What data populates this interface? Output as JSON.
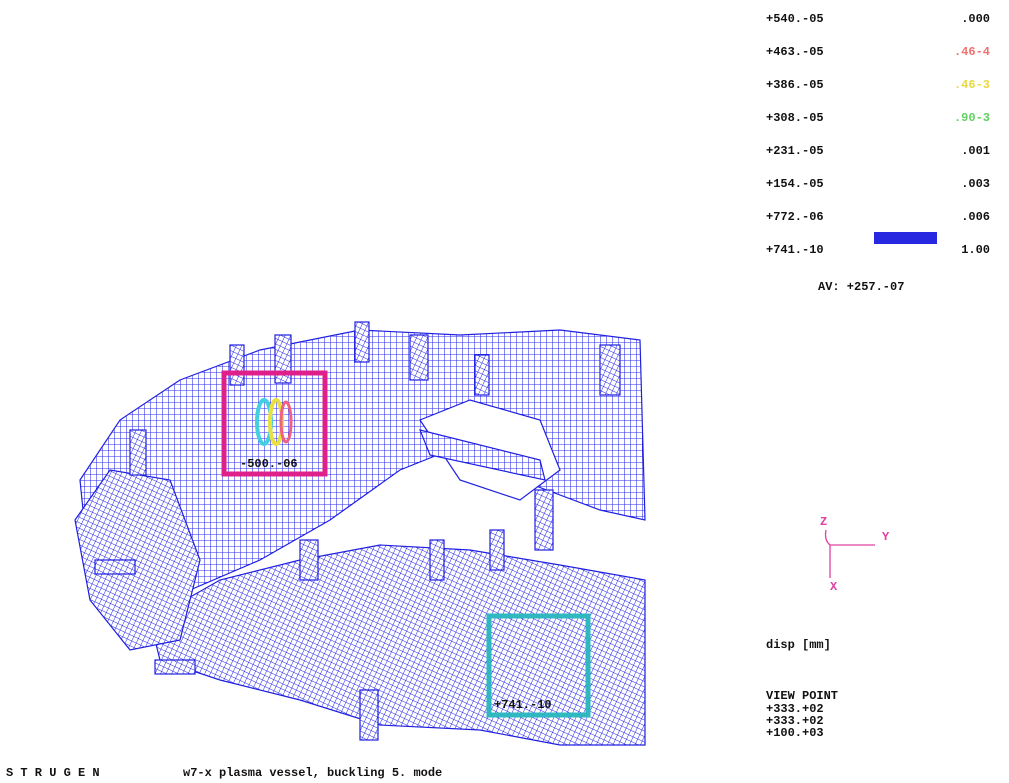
{
  "legend": {
    "levels": [
      "+540.-05",
      "+463.-05",
      "+386.-05",
      "+308.-05",
      "+231.-05",
      "+154.-05",
      "+772.-06",
      "+741.-10"
    ],
    "fractions": [
      ".000",
      ".46-4",
      ".46-3",
      ".90-3",
      ".001",
      ".003",
      ".006",
      "1.00"
    ],
    "average": "AV: +257.-07"
  },
  "markers": {
    "max_label": "-500.-06",
    "min_label": "+741.-10"
  },
  "axes": {
    "z": "Z",
    "y": "Y",
    "x": "X"
  },
  "quantity": "disp [mm]",
  "view_point": {
    "title": "VIEW POINT",
    "values": [
      "+333.+02",
      "+333.+02",
      "+100.+03"
    ]
  },
  "footer": {
    "program": "S T R U G E N",
    "title": "w7-x plasma vessel, buckling 5. mode"
  }
}
